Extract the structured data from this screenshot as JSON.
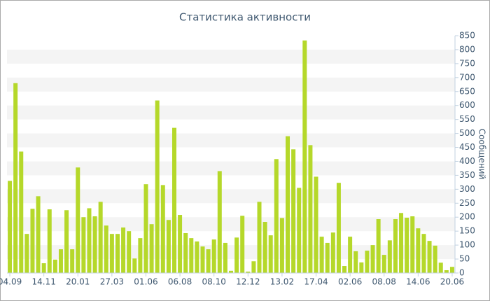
{
  "chart_data": {
    "type": "bar",
    "title": "Статистика активности",
    "y_label": "Сообщений",
    "categories": [
      "04.09",
      null,
      null,
      null,
      null,
      null,
      "14.11",
      null,
      null,
      null,
      null,
      null,
      "20.01",
      null,
      null,
      null,
      null,
      null,
      "27.03",
      null,
      null,
      null,
      null,
      null,
      "01.06",
      null,
      null,
      null,
      null,
      null,
      "06.08",
      null,
      null,
      null,
      null,
      null,
      "08.10",
      null,
      null,
      null,
      null,
      null,
      "12.12",
      null,
      null,
      null,
      null,
      null,
      "13.02",
      null,
      null,
      null,
      null,
      null,
      "17.04",
      null,
      null,
      null,
      null,
      null,
      "02.06",
      null,
      null,
      null,
      null,
      null,
      "08.08",
      null,
      null,
      null,
      null,
      null,
      "14.06",
      null,
      null,
      null,
      null,
      null,
      "20.06"
    ],
    "values": [
      330,
      680,
      435,
      140,
      230,
      275,
      35,
      228,
      48,
      85,
      225,
      85,
      378,
      200,
      232,
      203,
      255,
      170,
      140,
      140,
      163,
      150,
      52,
      125,
      318,
      175,
      618,
      315,
      190,
      520,
      208,
      143,
      125,
      113,
      95,
      85,
      120,
      365,
      108,
      8,
      127,
      205,
      5,
      42,
      255,
      183,
      135,
      408,
      197,
      490,
      443,
      305,
      833,
      458,
      345,
      130,
      108,
      145,
      323,
      25,
      130,
      78,
      38,
      80,
      100,
      193,
      65,
      117,
      193,
      215,
      198,
      203,
      160,
      140,
      115,
      98,
      37,
      10,
      22
    ],
    "color": "#b5d82a",
    "ylim": [
      0,
      850
    ],
    "yticks": [
      0,
      50,
      100,
      150,
      200,
      250,
      300,
      350,
      400,
      450,
      500,
      550,
      600,
      650,
      700,
      750,
      800,
      850
    ],
    "grid": true
  }
}
